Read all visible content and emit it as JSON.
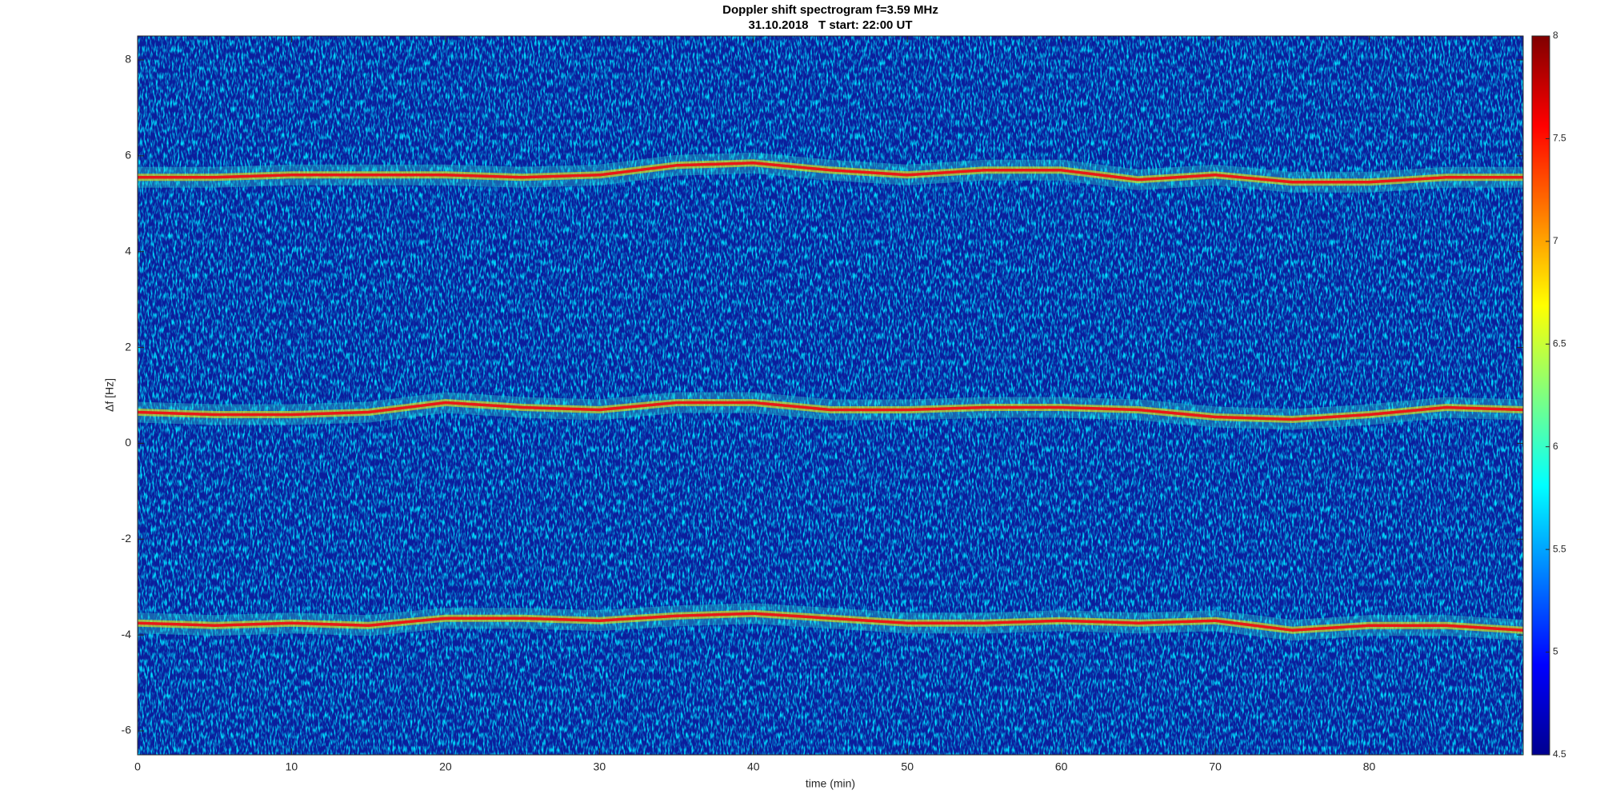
{
  "chart_data": {
    "type": "spectrogram",
    "title": "Doppler shift spectrogram f=3.59 MHz",
    "subtitle": "31.10.2018   T start: 22:00 UT",
    "xlabel": "time (min)",
    "ylabel": "Δf [Hz]",
    "xlim": [
      0,
      90
    ],
    "xticks": [
      0,
      10,
      20,
      30,
      40,
      50,
      60,
      70,
      80
    ],
    "ylim": [
      -6.5,
      8.5
    ],
    "yticks": [
      -6,
      -4,
      -2,
      0,
      2,
      4,
      6,
      8
    ],
    "clim": [
      4.5,
      8
    ],
    "cticks": [
      4.5,
      5,
      5.5,
      6,
      6.5,
      7,
      7.5,
      8
    ],
    "x": [
      0,
      5,
      10,
      15,
      20,
      25,
      30,
      35,
      40,
      45,
      50,
      55,
      60,
      65,
      70,
      75,
      80,
      85,
      90
    ],
    "series": [
      {
        "color": "#e81818",
        "values": [
          5.55,
          5.55,
          5.6,
          5.6,
          5.6,
          5.55,
          5.6,
          5.8,
          5.85,
          5.7,
          5.6,
          5.7,
          5.7,
          5.5,
          5.6,
          5.45,
          5.45,
          5.55,
          5.55
        ]
      },
      {
        "color": "#e81818",
        "values": [
          0.65,
          0.6,
          0.6,
          0.65,
          0.85,
          0.75,
          0.7,
          0.85,
          0.85,
          0.7,
          0.7,
          0.75,
          0.75,
          0.7,
          0.55,
          0.5,
          0.6,
          0.75,
          0.7
        ]
      },
      {
        "color": "#e81818",
        "values": [
          -3.75,
          -3.8,
          -3.75,
          -3.8,
          -3.65,
          -3.65,
          -3.7,
          -3.6,
          -3.55,
          -3.65,
          -3.75,
          -3.75,
          -3.7,
          -3.75,
          -3.7,
          -3.9,
          -3.8,
          -3.8,
          -3.9
        ]
      }
    ]
  }
}
